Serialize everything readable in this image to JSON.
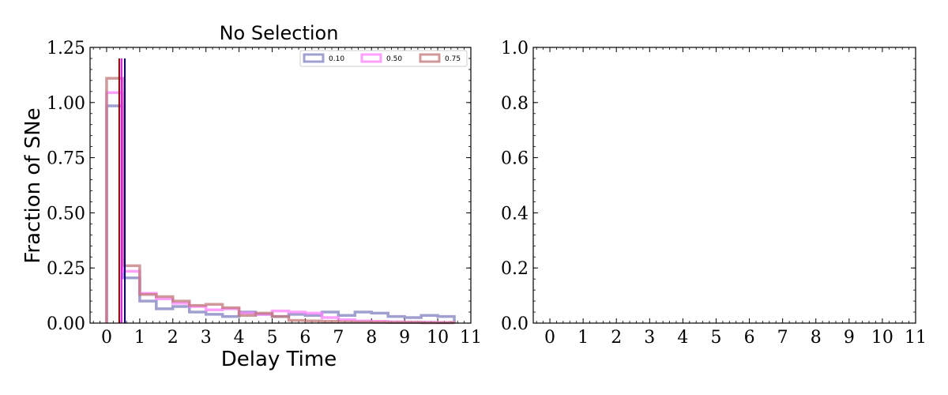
{
  "chart_data": [
    {
      "type": "histogram",
      "title": "No Selection",
      "xlabel": "Delay Time",
      "ylabel": "Fraction of SNe",
      "xlim": [
        -0.5,
        11
      ],
      "ylim": [
        0,
        1.25
      ],
      "xticks": [
        0,
        1,
        2,
        3,
        4,
        5,
        6,
        7,
        8,
        9,
        10,
        11
      ],
      "yticks": [
        "0.00",
        "0.25",
        "0.50",
        "0.75",
        "1.00",
        "1.25"
      ],
      "legend_position": "top-right",
      "bin_edges": [
        0,
        0.5,
        1,
        1.5,
        2,
        2.5,
        3,
        3.5,
        4,
        4.5,
        5,
        5.5,
        6,
        6.5,
        7,
        7.5,
        8,
        8.5,
        9,
        9.5,
        10,
        10.5
      ],
      "series": [
        {
          "name": "0.10",
          "color": "#8080c0",
          "values": [
            0.985,
            0.205,
            0.1,
            0.065,
            0.075,
            0.05,
            0.04,
            0.03,
            0.05,
            0.04,
            0.03,
            0.04,
            0.035,
            0.05,
            0.035,
            0.05,
            0.045,
            0.03,
            0.025,
            0.035,
            0.03
          ],
          "vline": 0.55,
          "vline_color": "#00008b"
        },
        {
          "name": "0.50",
          "color": "#ff80ff",
          "values": [
            1.045,
            0.235,
            0.135,
            0.11,
            0.09,
            0.075,
            0.06,
            0.065,
            0.045,
            0.04,
            0.055,
            0.05,
            0.045,
            0.025,
            0.015,
            0.01,
            0.008,
            0.006,
            0.005,
            0.004,
            0.003
          ],
          "vline": 0.45,
          "vline_color": "#ff00ff"
        },
        {
          "name": "0.75",
          "color": "#c07878",
          "values": [
            1.11,
            0.26,
            0.13,
            0.12,
            0.1,
            0.08,
            0.085,
            0.07,
            0.035,
            0.045,
            0.03,
            0.012,
            0.01,
            0.008,
            0.006,
            0.005,
            0.004,
            0.003,
            0.003,
            0.002,
            0.002
          ],
          "vline": 0.38,
          "vline_color": "#8b0000"
        }
      ]
    },
    {
      "type": "empty",
      "xlim": [
        -0.5,
        11
      ],
      "ylim": [
        0,
        1
      ],
      "xticks": [
        0,
        1,
        2,
        3,
        4,
        5,
        6,
        7,
        8,
        9,
        10,
        11
      ],
      "yticks": [
        "0.0",
        "0.2",
        "0.4",
        "0.6",
        "0.8",
        "1.0"
      ]
    }
  ]
}
